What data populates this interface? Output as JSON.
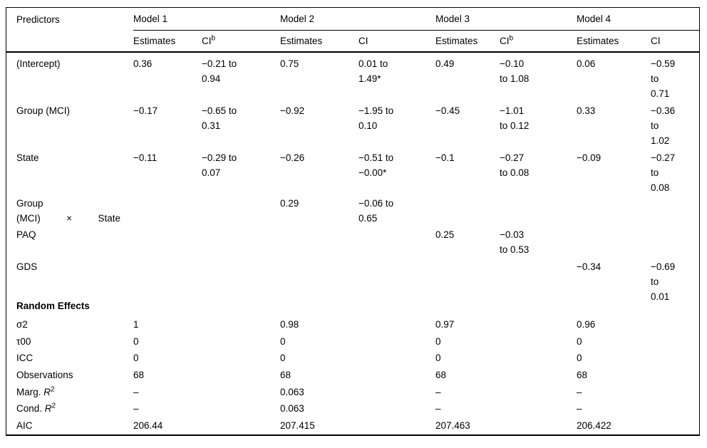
{
  "colors": {
    "text": "#000000",
    "background": "#ffffff",
    "rule": "#000000"
  },
  "header": {
    "predictors": "Predictors",
    "models": [
      "Model 1",
      "Model 2",
      "Model 3",
      "Model 4"
    ],
    "subheaders": [
      {
        "label": "Estimates"
      },
      {
        "label": "CI",
        "sup": "b"
      },
      {
        "label": "Estimates"
      },
      {
        "label": "CI",
        "sup": ""
      },
      {
        "label": "Estimates"
      },
      {
        "label": "CI",
        "sup": "b"
      },
      {
        "label": "Estimates"
      },
      {
        "label": "CI",
        "sup": ""
      }
    ]
  },
  "body": [
    {
      "label": "(Intercept)",
      "cells": [
        "0.36",
        "−0.21 to\n0.94",
        "0.75",
        "0.01 to\n1.49*",
        "0.49",
        "−0.10\nto 1.08",
        "0.06",
        "−0.59\nto\n0.71"
      ]
    },
    {
      "label": "Group (MCI)",
      "cells": [
        "−0.17",
        "−0.65 to\n0.31",
        "−0.92",
        "−1.95 to\n0.10",
        "−0.45",
        "−1.01\nto 0.12",
        "0.33",
        "−0.36\nto\n1.02"
      ]
    },
    {
      "label": "State",
      "cells": [
        "−0.11",
        "−0.29 to\n0.07",
        "−0.26",
        "−0.51 to\n−0.00*",
        "−0.1",
        "−0.27\nto 0.08",
        "−0.09",
        "−0.27\nto\n0.08"
      ]
    },
    {
      "label_line1": "Group",
      "line2": {
        "a": "(MCI)",
        "b": "×",
        "c": "State"
      },
      "cells": [
        "",
        "",
        "0.29",
        "−0.06 to\n0.65",
        "",
        "",
        "",
        ""
      ]
    },
    {
      "label": "PAQ",
      "cells": [
        "",
        "",
        "",
        "",
        "0.25",
        "−0.03\nto 0.53",
        "",
        ""
      ]
    },
    {
      "label": "GDS",
      "cells": [
        "",
        "",
        "",
        "",
        "",
        "",
        "−0.34",
        "−0.69\nto\n0.01"
      ]
    }
  ],
  "random_effects": {
    "section_title": "Random Effects",
    "rows": [
      {
        "label": "σ2",
        "values": [
          "1",
          "0.98",
          "0.97",
          "0.96"
        ]
      },
      {
        "label": "τ00",
        "values": [
          "0",
          "0",
          "0",
          "0"
        ]
      },
      {
        "label": "ICC",
        "values": [
          "0",
          "0",
          "0",
          "0"
        ]
      },
      {
        "label": "Observations",
        "values": [
          "68",
          "68",
          "68",
          "68"
        ]
      },
      {
        "label": "Marg. ",
        "label_italic": "R",
        "label_sup": "2",
        "values": [
          "–",
          "0.063",
          "–",
          "–"
        ]
      },
      {
        "label": "Cond. ",
        "label_italic": "R",
        "label_sup": "2",
        "values": [
          "–",
          "0.063",
          "–",
          "–"
        ]
      },
      {
        "label": "AIC",
        "values": [
          "206.44",
          "207.415",
          "207.463",
          "206.422"
        ]
      }
    ]
  }
}
